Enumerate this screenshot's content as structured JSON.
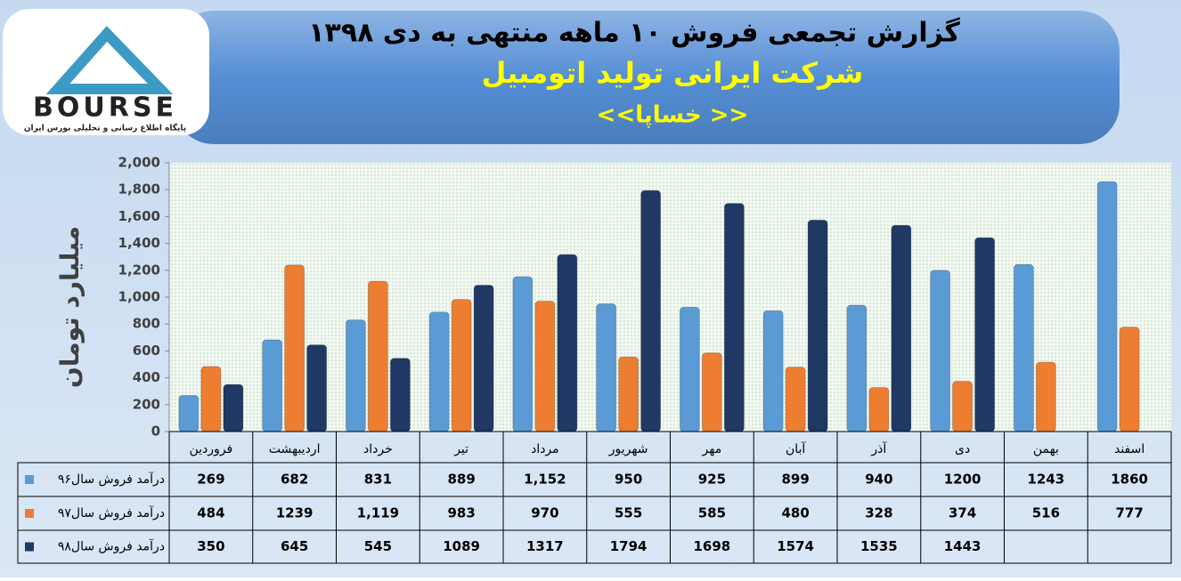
{
  "logo": {
    "text": "BOURSE",
    "tagline": "پایگاه اطلاع رسانی و تحلیلی بورس ایران"
  },
  "chart_data": {
    "type": "bar",
    "title": "گزارش تجمعی فروش  ۱۰ ماهه منتهی به دی ۱۳۹۸",
    "subtitle": "شرکت ایرانی تولید اتومبیل",
    "caption": "<<خساپا >>",
    "y_label": "میلیارد تومان",
    "categories": [
      "فروردین",
      "اردیبهشت",
      "خرداد",
      "تیر",
      "مرداد",
      "شهریور",
      "مهر",
      "آبان",
      "آذر",
      "دی",
      "بهمن",
      "اسفند"
    ],
    "series": [
      {
        "name": "درآمد فروش سال۹۶",
        "color": "#5b9bd5",
        "values": [
          269,
          682,
          831,
          889,
          1152,
          950,
          925,
          899,
          940,
          1200,
          1243,
          1860
        ],
        "value_labels": [
          "269",
          "682",
          "831",
          "889",
          "1,152",
          "950",
          "925",
          "899",
          "940",
          "1200",
          "1243",
          "1860"
        ]
      },
      {
        "name": "درآمد فروش سال۹۷",
        "color": "#ed7d31",
        "values": [
          484,
          1239,
          1119,
          983,
          970,
          555,
          585,
          480,
          328,
          374,
          516,
          777
        ],
        "value_labels": [
          "484",
          "1239",
          "1,119",
          "983",
          "970",
          "555",
          "585",
          "480",
          "328",
          "374",
          "516",
          "777"
        ]
      },
      {
        "name": "درآمد فروش سال۹۸",
        "color": "#1f3864",
        "values": [
          350,
          645,
          545,
          1089,
          1317,
          1794,
          1698,
          1574,
          1535,
          1443,
          null,
          null
        ],
        "value_labels": [
          "350",
          "645",
          "545",
          "1089",
          "1317",
          "1794",
          "1698",
          "1574",
          "1535",
          "1443",
          null,
          null
        ]
      }
    ],
    "ylim": [
      0,
      2000
    ],
    "yticks": [
      0,
      200,
      400,
      600,
      800,
      {
        "value": 1000,
        "label": "1,000"
      },
      {
        "value": 1200,
        "label": "1,200"
      },
      {
        "value": 1400,
        "label": "1,400"
      },
      {
        "value": 1600,
        "label": "1,600"
      },
      {
        "value": 1800,
        "label": "1,800"
      },
      {
        "value": 2000,
        "label": "2,000"
      }
    ],
    "grid": false
  }
}
